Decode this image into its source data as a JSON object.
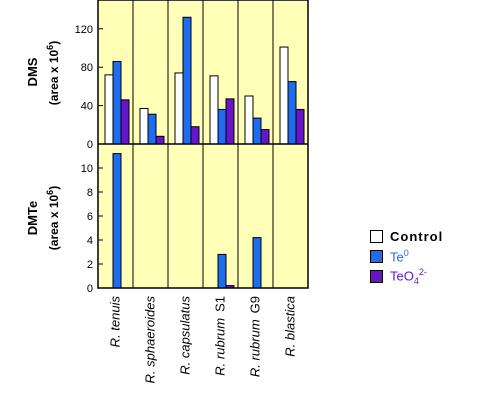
{
  "colors": {
    "panel_bg": "#ffffb8",
    "control": "#ffffff",
    "te0": "#1e6cf0",
    "teo4": "#6616c8"
  },
  "legend": {
    "control_label": "Control",
    "te0_label": "Te",
    "te0_sup": "0",
    "teo4_label": "TeO",
    "teo4_sub": "4",
    "teo4_sup": "2-",
    "te0_color": "#1e6cf0",
    "teo4_color": "#6616c8"
  },
  "chart_data": [
    {
      "type": "bar",
      "panel": "top",
      "ylabel": "DMS",
      "yunit": "(area x 10",
      "yunit_sup": "6",
      "yunit_close": ")",
      "ylim": [
        0,
        150
      ],
      "yticks": [
        "0",
        "40",
        "80",
        "120"
      ],
      "ytick_values": [
        0,
        40,
        80,
        120
      ],
      "categories": [
        "R. tenuis",
        "R. sphaeroides",
        "R. capsulatus",
        "R. rubrum S1",
        "R. rubrum G9",
        "R. blastica"
      ],
      "series": [
        {
          "name": "Control",
          "values": [
            72,
            37,
            74,
            71,
            50,
            101
          ]
        },
        {
          "name": "Te0",
          "values": [
            86,
            31,
            132,
            36,
            27,
            65
          ]
        },
        {
          "name": "TeO4 2-",
          "values": [
            46,
            8,
            18,
            47,
            15,
            36
          ]
        }
      ]
    },
    {
      "type": "bar",
      "panel": "bottom",
      "ylabel": "DMTe",
      "yunit": "(area x 10",
      "yunit_sup": "6",
      "yunit_close": ")",
      "ylim": [
        0,
        12
      ],
      "yticks": [
        "0",
        "2",
        "4",
        "6",
        "8",
        "10"
      ],
      "ytick_values": [
        0,
        2,
        4,
        6,
        8,
        10
      ],
      "categories": [
        "R. tenuis",
        "R. sphaeroides",
        "R. capsulatus",
        "R. rubrum S1",
        "R. rubrum G9",
        "R. blastica"
      ],
      "series": [
        {
          "name": "Control",
          "values": [
            0,
            0,
            0,
            0,
            0,
            0
          ]
        },
        {
          "name": "Te0",
          "values": [
            11.2,
            0,
            0,
            2.8,
            4.2,
            0
          ]
        },
        {
          "name": "TeO4 2-",
          "values": [
            0,
            0,
            0,
            0.2,
            0,
            0
          ]
        }
      ]
    }
  ],
  "category_labels": [
    {
      "italic": "R. tenuis",
      "strain": ""
    },
    {
      "italic": "R. sphaeroides",
      "strain": ""
    },
    {
      "italic": "R. capsulatus",
      "strain": ""
    },
    {
      "italic": "R. rubrum",
      "strain": "S1"
    },
    {
      "italic": "R. rubrum",
      "strain": "G9"
    },
    {
      "italic": "R. blastica",
      "strain": ""
    }
  ]
}
